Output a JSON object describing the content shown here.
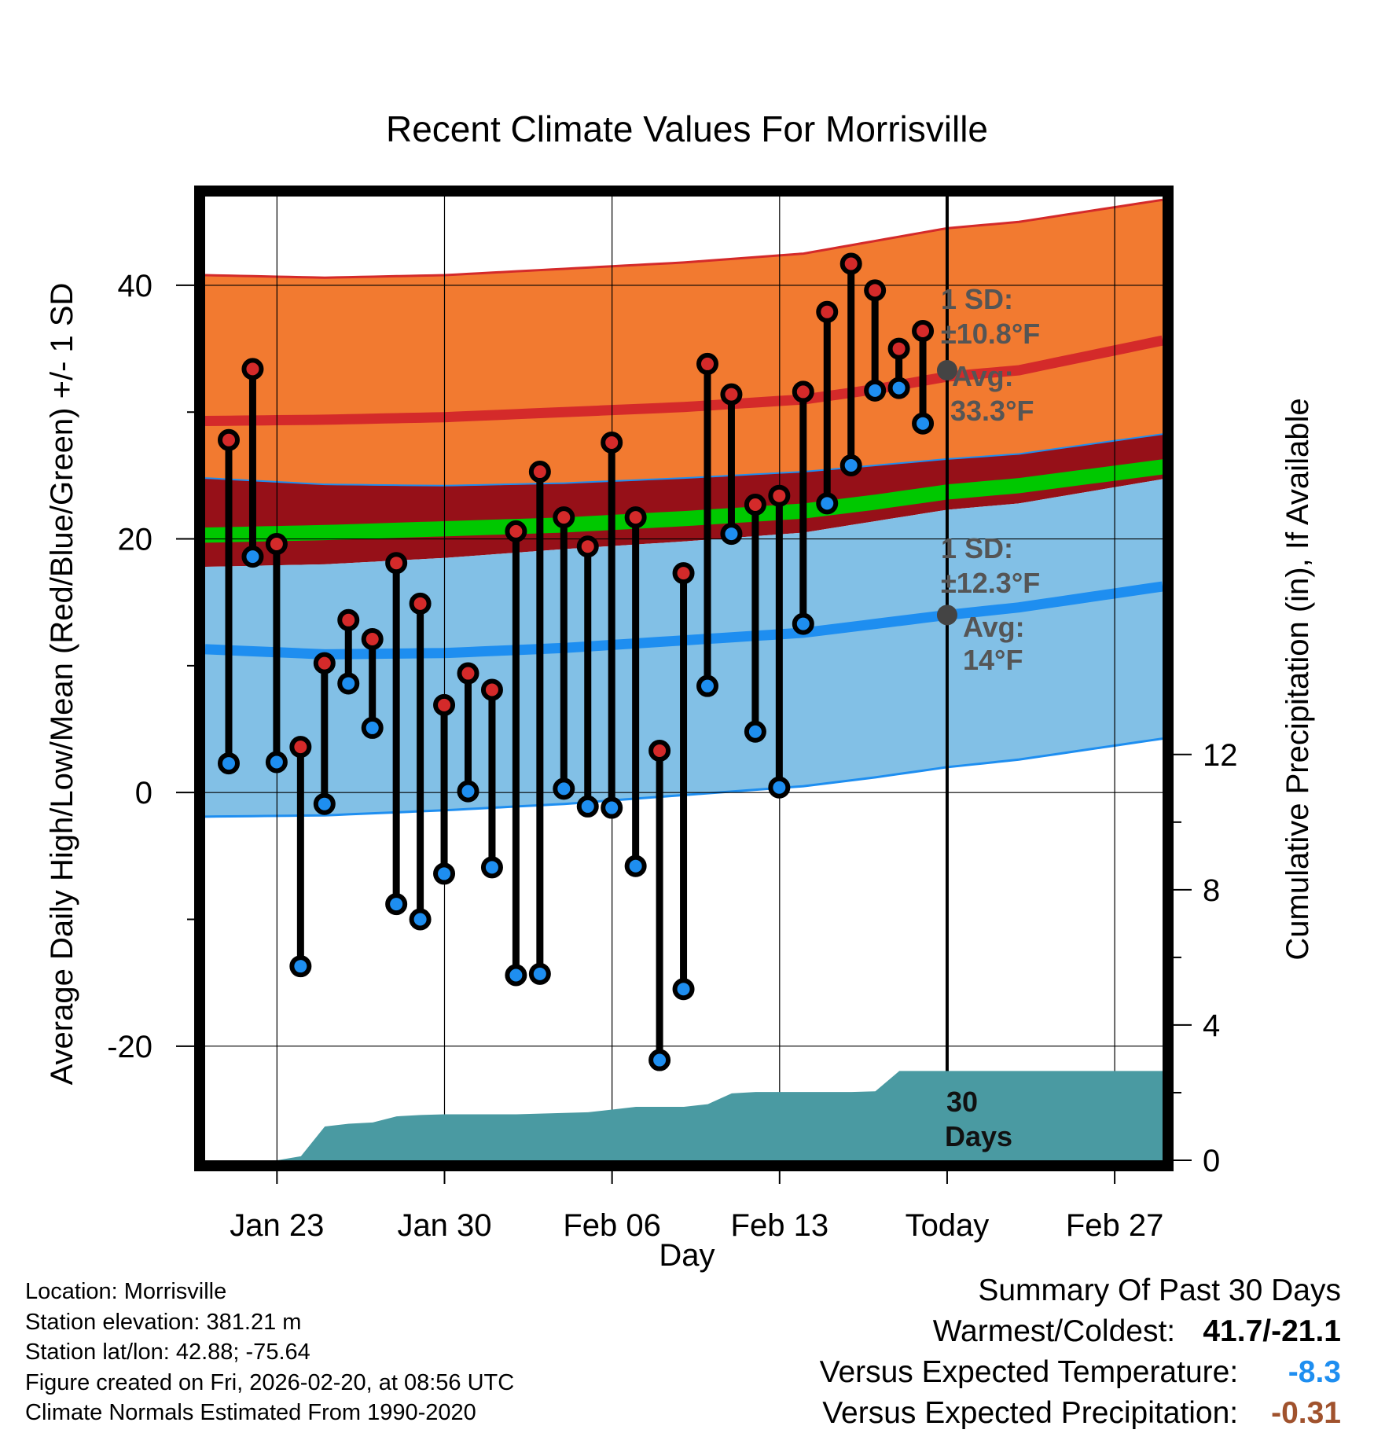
{
  "chart_data": {
    "type": "climate-range",
    "title": "Recent Climate Values For Morrisville",
    "xlabel": "Day",
    "ylabel_left": "Average Daily High/Low/Mean (Red/Blue/Green) +/- 1 SD",
    "ylabel_right": "Cumulative Precipitation (in), If Available",
    "x_start": "Jan 20",
    "x_days": 41,
    "today_index": 30,
    "ylim_temp": [
      -29,
      47
    ],
    "ylim_precip": [
      0,
      28.5
    ],
    "x_ticks": [
      {
        "day": 3,
        "label": "Jan 23"
      },
      {
        "day": 10,
        "label": "Jan 30"
      },
      {
        "day": 17,
        "label": "Feb 06"
      },
      {
        "day": 24,
        "label": "Feb 13"
      },
      {
        "day": 31,
        "label": "Today"
      },
      {
        "day": 38,
        "label": "Feb 27"
      }
    ],
    "y_ticks_temp": [
      40,
      20,
      0,
      -20
    ],
    "y_ticks_precip": [
      0,
      4,
      8,
      12
    ],
    "normals": {
      "high_mean": [
        29.3,
        29.4,
        29.6,
        30.0,
        30.4,
        31.0,
        31.8,
        32.8,
        33.3,
        36.0
      ],
      "high_sd_upper": [
        40.8,
        40.6,
        40.8,
        41.3,
        41.8,
        42.5,
        43.5,
        44.5,
        45.0,
        47.0
      ],
      "high_sd_lower": [
        24.8,
        24.3,
        24.2,
        24.4,
        24.8,
        25.3,
        25.8,
        26.3,
        26.7,
        28.5
      ],
      "mean_mean": [
        20.3,
        20.5,
        20.8,
        21.1,
        21.6,
        22.2,
        22.9,
        23.7,
        24.2,
        25.9
      ],
      "low_mean": [
        11.3,
        10.9,
        11.0,
        11.4,
        12.0,
        12.6,
        13.3,
        14.0,
        14.6,
        16.5
      ],
      "low_sd_upper": [
        17.8,
        18.0,
        18.5,
        19.2,
        19.8,
        20.5,
        21.4,
        22.3,
        22.8,
        25.0
      ],
      "low_sd_lower": [
        -1.9,
        -1.8,
        -1.4,
        -0.9,
        -0.2,
        0.5,
        1.2,
        2.0,
        2.6,
        4.5
      ],
      "day_points": [
        0,
        5,
        10,
        15,
        20,
        25,
        28,
        31,
        34,
        40.9
      ]
    },
    "series": [
      {
        "name": "High",
        "values": [
          27.8,
          33.4,
          19.6,
          3.6,
          10.2,
          13.6,
          12.1,
          18.1,
          14.9,
          6.9,
          9.4,
          8.1,
          20.6,
          25.3,
          21.7,
          19.4,
          27.6,
          21.7,
          3.3,
          17.3,
          33.8,
          31.4,
          22.7,
          23.4,
          31.6,
          37.9,
          41.7,
          39.6,
          35.0,
          36.4
        ]
      },
      {
        "name": "Low",
        "values": [
          2.3,
          18.6,
          2.4,
          -13.7,
          -0.9,
          8.6,
          5.1,
          -8.8,
          -10.0,
          -6.4,
          0.1,
          -5.9,
          -14.4,
          -14.3,
          0.3,
          -1.1,
          -1.2,
          -5.8,
          -21.1,
          -15.5,
          8.4,
          20.4,
          4.8,
          0.4,
          13.3,
          22.8,
          25.8,
          31.7,
          31.9,
          29.1
        ]
      },
      {
        "name": "Cumulative Precipitation",
        "values": [
          0,
          0,
          0,
          0,
          0.12,
          1.0,
          1.08,
          1.12,
          1.3,
          1.34,
          1.36,
          1.36,
          1.36,
          1.36,
          1.38,
          1.4,
          1.42,
          1.5,
          1.58,
          1.58,
          1.58,
          1.66,
          1.98,
          2.02,
          2.02,
          2.02,
          2.02,
          2.02,
          2.04,
          2.64,
          2.64,
          2.64,
          2.64,
          2.64,
          2.64,
          2.64,
          2.64,
          2.64,
          2.64,
          2.64,
          2.64
        ]
      }
    ],
    "annotations": {
      "high_sd_label": "1 SD:",
      "high_sd_value": "±10.8°F",
      "high_avg_label": "Avg:",
      "high_avg_value": "33.3°F",
      "low_sd_label": "1 SD:",
      "low_sd_value": "±12.3°F",
      "low_avg_label": "Avg:",
      "low_avg_value": "14°F",
      "high_avg": 33.3,
      "low_avg": 14,
      "days_line1": "30",
      "days_line2": "Days"
    },
    "colors": {
      "high_band": "#f27a30",
      "high_line": "#d42a2a",
      "low_band": "#82c0e6",
      "low_line": "#1e8ef0",
      "overlap_band": "#961018",
      "mean_band": "#00c800",
      "precip_fill": "#4a9aa2",
      "high_marker": "#d42a2a",
      "low_marker": "#1e8ef0",
      "avg_marker": "#444444"
    }
  },
  "info": {
    "location": "Location: Morrisville",
    "elevation": "Station elevation: 381.21 m",
    "latlon": "Station lat/lon: 42.88; -75.64",
    "created": "Figure created on Fri, 2026-02-20, at 08:56 UTC",
    "normals": "Climate Normals Estimated From 1990-2020"
  },
  "summary": {
    "title": "Summary Of Past 30 Days",
    "warmest_label": "Warmest/Coldest:",
    "warmest_value": "41.7/-21.1",
    "temp_label": "Versus Expected Temperature:",
    "temp_value": "-8.3",
    "temp_color": "#1e8ef0",
    "precip_label": "Versus Expected Precipitation:",
    "precip_value": "-0.31",
    "precip_color": "#a0522d"
  }
}
